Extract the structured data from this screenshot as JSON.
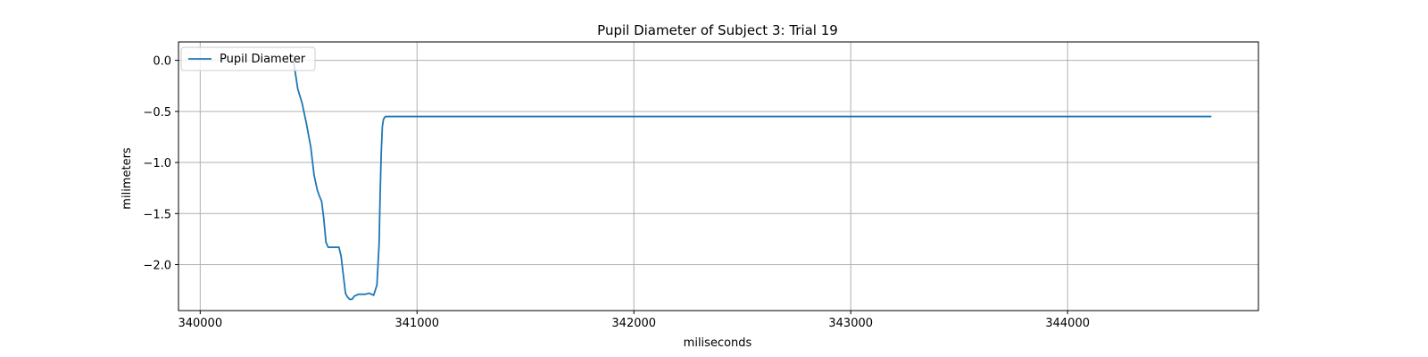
{
  "chart_data": {
    "type": "line",
    "title": "Pupil Diameter of Subject 3: Trial 19",
    "xlabel": "miliseconds",
    "ylabel": "milimeters",
    "xlim": [
      339900,
      344880
    ],
    "ylim": [
      -2.45,
      0.18
    ],
    "xticks": [
      340000,
      341000,
      342000,
      343000,
      344000
    ],
    "yticks": [
      0.0,
      -0.5,
      -1.0,
      -1.5,
      -2.0
    ],
    "ytick_labels": [
      "0.0",
      "−0.5",
      "−1.0",
      "−1.5",
      "−2.0"
    ],
    "grid": true,
    "legend_position": "top-left",
    "series": [
      {
        "name": "Pupil Diameter",
        "color": "#1f77b4",
        "x": [
          340430,
          340450,
          340470,
          340490,
          340510,
          340525,
          340540,
          340550,
          340560,
          340570,
          340580,
          340590,
          340600,
          340620,
          340640,
          340650,
          340660,
          340670,
          340680,
          340690,
          340700,
          340710,
          340720,
          340730,
          340740,
          340760,
          340780,
          340800,
          340815,
          340825,
          340830,
          340835,
          340840,
          340845,
          340850,
          340855,
          340870,
          341500,
          342500,
          343500,
          344000,
          344500,
          344660
        ],
        "y": [
          0.0,
          -0.28,
          -0.42,
          -0.62,
          -0.85,
          -1.12,
          -1.27,
          -1.33,
          -1.38,
          -1.55,
          -1.78,
          -1.83,
          -1.83,
          -1.83,
          -1.83,
          -1.92,
          -2.1,
          -2.28,
          -2.32,
          -2.34,
          -2.34,
          -2.31,
          -2.3,
          -2.29,
          -2.29,
          -2.29,
          -2.28,
          -2.3,
          -2.2,
          -1.8,
          -1.3,
          -0.9,
          -0.65,
          -0.58,
          -0.56,
          -0.55,
          -0.55,
          -0.55,
          -0.55,
          -0.55,
          -0.55,
          -0.55,
          -0.55
        ]
      }
    ]
  }
}
